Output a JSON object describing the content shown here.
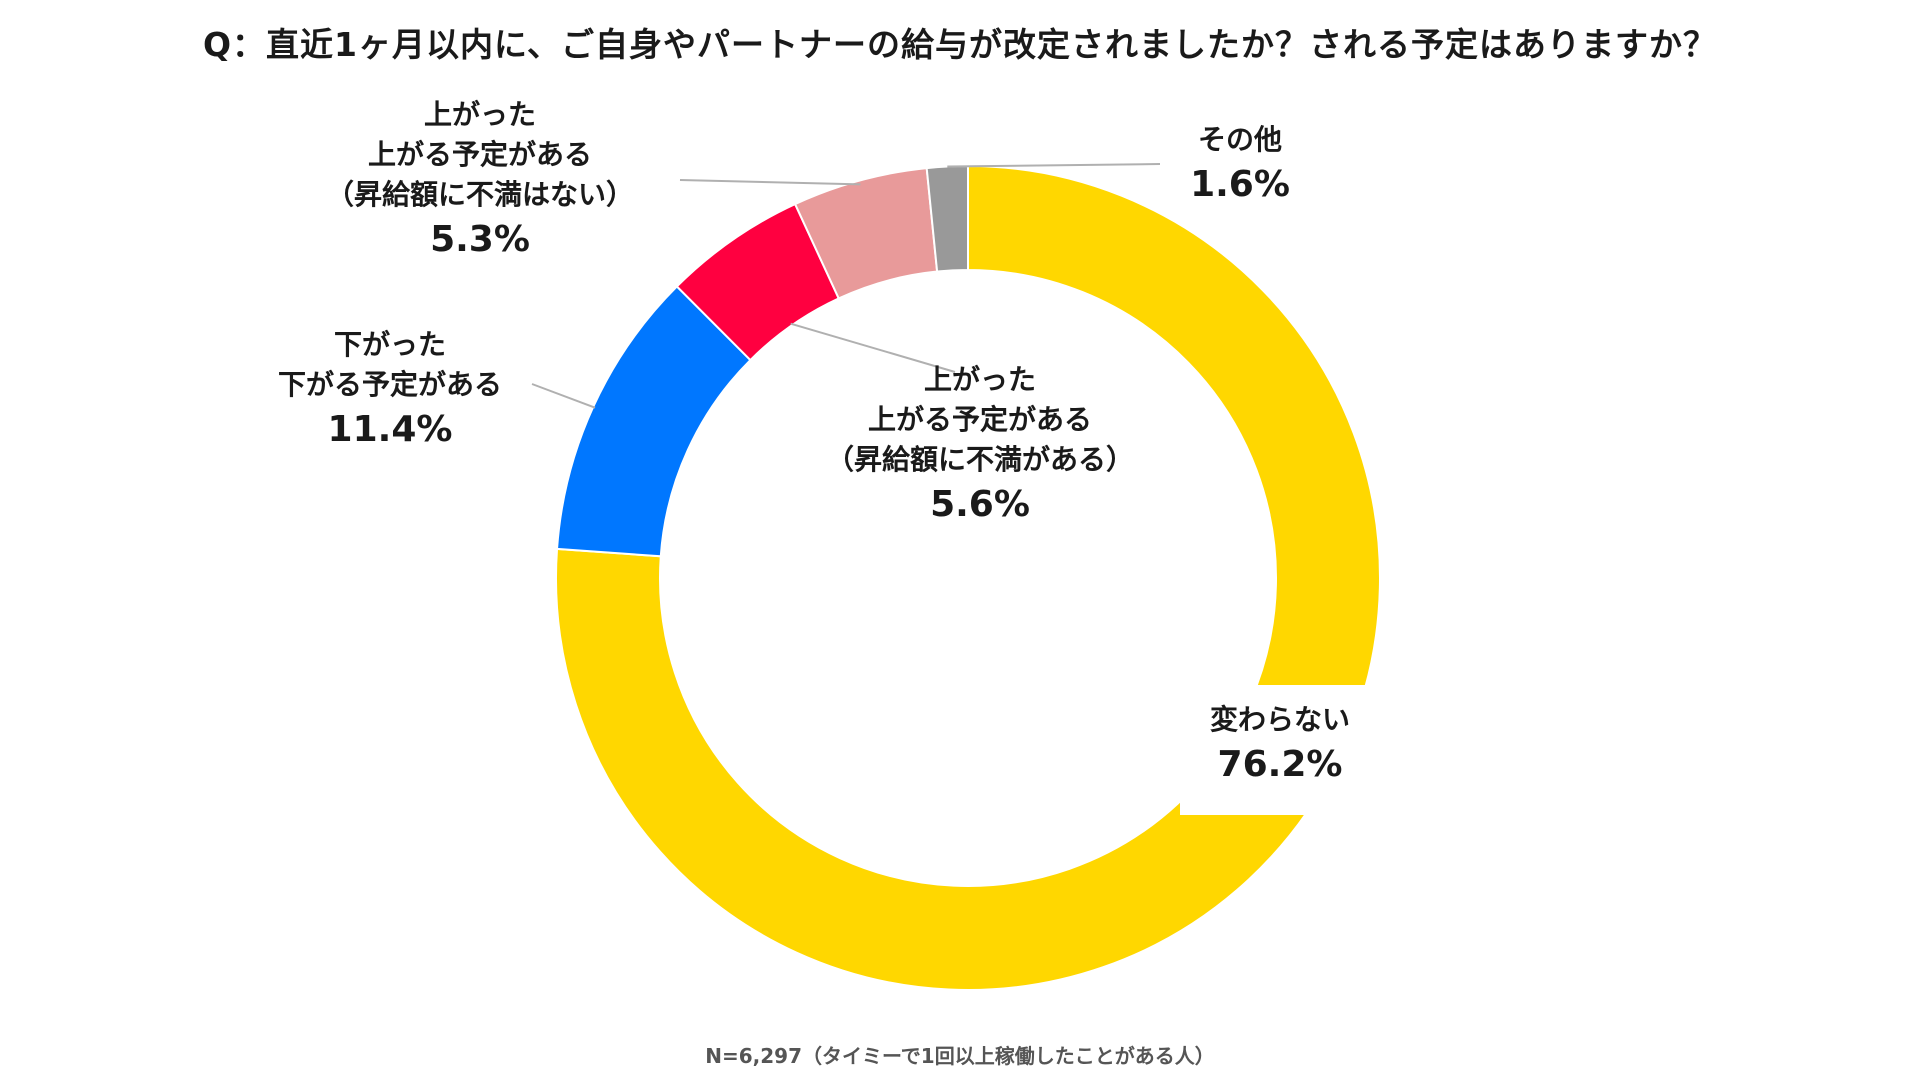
{
  "chart_data": {
    "type": "donut",
    "title": "Q：直近1ヶ月以内に、ご自身やパートナーの給与が改定されましたか？される予定はありますか？",
    "note": "N=6,297（タイミーで1回以上稼働したことがある人）",
    "slices": [
      {
        "id": "unchanged",
        "label_lines": [
          "変わらない"
        ],
        "value": 76.2,
        "pct_label": "76.2%",
        "color": "#FFD700"
      },
      {
        "id": "down",
        "label_lines": [
          "下がった",
          "下がる予定がある"
        ],
        "value": 11.4,
        "pct_label": "11.4%",
        "color": "#0077FF"
      },
      {
        "id": "up-dissatisfied",
        "label_lines": [
          "上がった",
          "上がる予定がある",
          "（昇給額に不満がある）"
        ],
        "value": 5.6,
        "pct_label": "5.6%",
        "color": "#FF0040"
      },
      {
        "id": "up-satisfied",
        "label_lines": [
          "上がった",
          "上がる予定がある",
          "（昇給額に不満はない）"
        ],
        "value": 5.3,
        "pct_label": "5.3%",
        "color": "#E89A9A"
      },
      {
        "id": "other",
        "label_lines": [
          "その他"
        ],
        "value": 1.6,
        "pct_label": "1.6%",
        "color": "#999999"
      }
    ]
  }
}
